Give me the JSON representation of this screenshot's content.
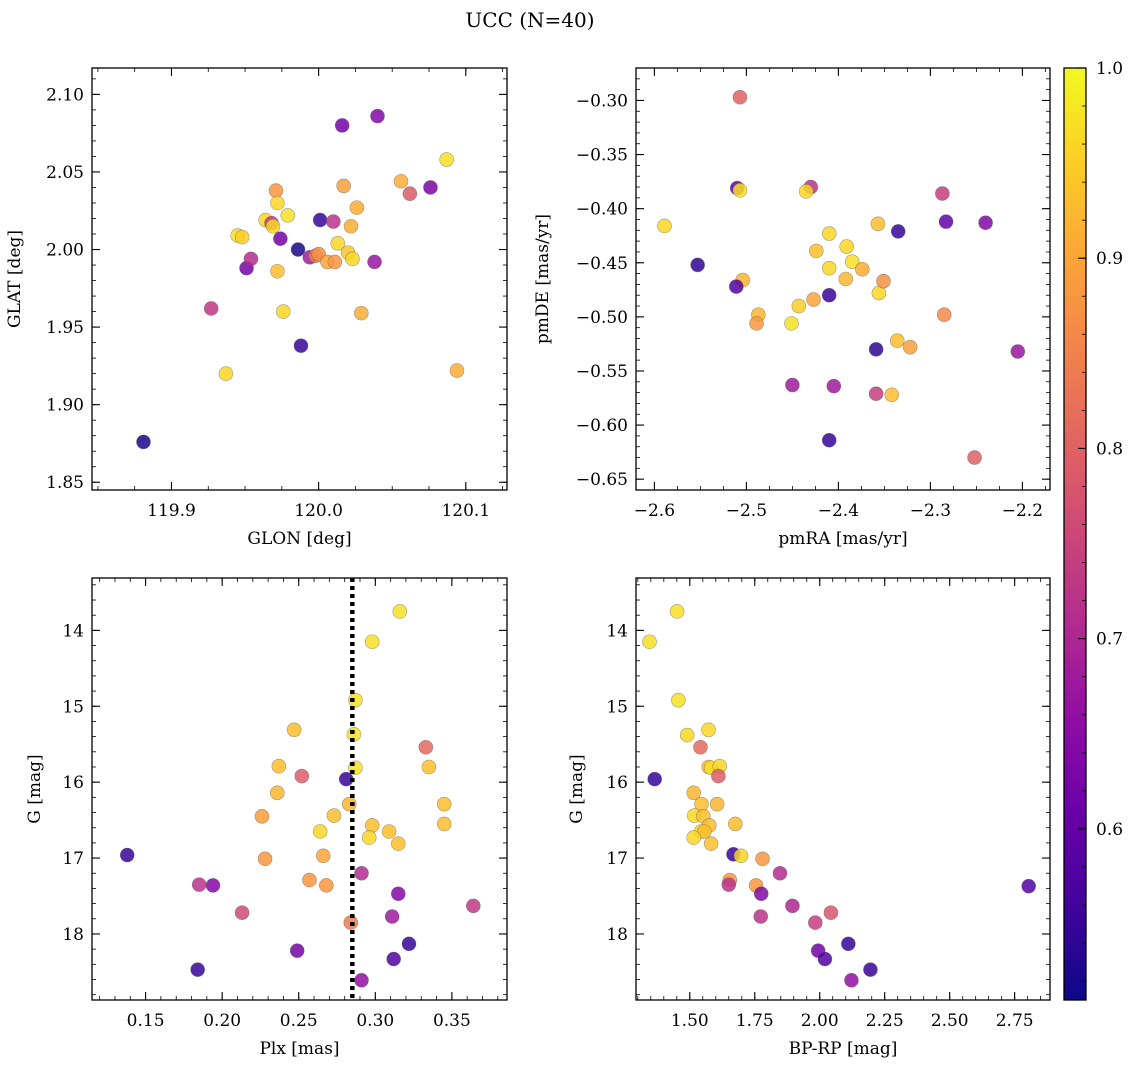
{
  "title": "UCC (N=40)",
  "colorbar": {
    "colormap": "plasma",
    "range": [
      0.51,
      1.0
    ],
    "ticks": [
      0.6,
      0.7,
      0.8,
      0.9,
      1.0
    ],
    "tick_labels": [
      "0.6",
      "0.7",
      "0.8",
      "0.9",
      "1.0"
    ]
  },
  "chart_data": [
    {
      "type": "scatter",
      "xlabel": "GLON [deg]",
      "ylabel": "GLAT [deg]",
      "xlim": [
        119.846,
        120.128
      ],
      "ylim": [
        1.845,
        2.117
      ],
      "xticks": [
        119.9,
        120.0,
        120.1
      ],
      "xtick_labels": [
        "119.9",
        "120.0",
        "120.1"
      ],
      "yticks": [
        1.85,
        1.9,
        1.95,
        2.0,
        2.05,
        2.1
      ],
      "ytick_labels": [
        "1.85",
        "1.90",
        "1.95",
        "2.00",
        "2.05",
        "2.10"
      ],
      "points": [
        [
          119.881,
          1.876,
          0.52
        ],
        [
          119.927,
          1.962,
          0.73
        ],
        [
          119.937,
          1.92,
          0.96
        ],
        [
          119.945,
          2.009,
          0.97
        ],
        [
          119.948,
          2.008,
          0.95
        ],
        [
          119.951,
          1.988,
          0.62
        ],
        [
          119.954,
          1.994,
          0.71
        ],
        [
          119.964,
          2.019,
          0.96
        ],
        [
          119.968,
          2.017,
          0.73
        ],
        [
          119.969,
          2.015,
          0.96
        ],
        [
          119.971,
          2.038,
          0.88
        ],
        [
          119.972,
          2.03,
          0.96
        ],
        [
          119.972,
          1.986,
          0.93
        ],
        [
          119.974,
          2.007,
          0.62
        ],
        [
          119.976,
          1.96,
          0.96
        ],
        [
          119.979,
          2.022,
          0.97
        ],
        [
          119.986,
          2.0,
          0.52
        ],
        [
          119.988,
          1.938,
          0.55
        ],
        [
          119.994,
          1.995,
          0.68
        ],
        [
          119.998,
          1.996,
          0.84
        ],
        [
          120.0,
          1.997,
          0.87
        ],
        [
          120.001,
          2.019,
          0.55
        ],
        [
          120.006,
          1.992,
          0.9
        ],
        [
          120.01,
          2.018,
          0.72
        ],
        [
          120.011,
          1.992,
          0.88
        ],
        [
          120.013,
          2.004,
          0.96
        ],
        [
          120.016,
          2.08,
          0.62
        ],
        [
          120.017,
          2.041,
          0.89
        ],
        [
          120.02,
          1.998,
          0.94
        ],
        [
          120.022,
          2.015,
          0.91
        ],
        [
          120.023,
          1.994,
          0.96
        ],
        [
          120.026,
          2.027,
          0.91
        ],
        [
          120.029,
          1.959,
          0.91
        ],
        [
          120.038,
          1.992,
          0.67
        ],
        [
          120.04,
          2.086,
          0.64
        ],
        [
          120.056,
          2.044,
          0.91
        ],
        [
          120.062,
          2.036,
          0.79
        ],
        [
          120.076,
          2.04,
          0.63
        ],
        [
          120.087,
          2.058,
          0.97
        ],
        [
          120.094,
          1.922,
          0.91
        ]
      ]
    },
    {
      "type": "scatter",
      "xlabel": "pmRA [mas/yr]",
      "ylabel": "pmDE [mas/yr]",
      "xlim": [
        -2.62,
        -2.17
      ],
      "ylim": [
        -0.66,
        -0.27
      ],
      "xticks": [
        -2.6,
        -2.5,
        -2.4,
        -2.3,
        -2.2
      ],
      "xtick_labels": [
        "−2.6",
        "−2.5",
        "−2.4",
        "−2.3",
        "−2.2"
      ],
      "yticks": [
        -0.65,
        -0.6,
        -0.55,
        -0.5,
        -0.45,
        -0.4,
        -0.35,
        -0.3
      ],
      "ytick_labels": [
        "−0.65",
        "−0.60",
        "−0.55",
        "−0.50",
        "−0.45",
        "−0.40",
        "−0.35",
        "−0.30"
      ],
      "points": [
        [
          -2.507,
          -0.297,
          0.8
        ],
        [
          -2.589,
          -0.416,
          0.96
        ],
        [
          -2.553,
          -0.452,
          0.54
        ],
        [
          -2.51,
          -0.381,
          0.6
        ],
        [
          -2.507,
          -0.383,
          0.97
        ],
        [
          -2.504,
          -0.466,
          0.92
        ],
        [
          -2.511,
          -0.472,
          0.58
        ],
        [
          -2.487,
          -0.498,
          0.92
        ],
        [
          -2.489,
          -0.506,
          0.88
        ],
        [
          -2.451,
          -0.506,
          0.97
        ],
        [
          -2.443,
          -0.49,
          0.95
        ],
        [
          -2.45,
          -0.563,
          0.68
        ],
        [
          -2.43,
          -0.38,
          0.72
        ],
        [
          -2.435,
          -0.384,
          0.96
        ],
        [
          -2.427,
          -0.484,
          0.9
        ],
        [
          -2.424,
          -0.439,
          0.93
        ],
        [
          -2.41,
          -0.423,
          0.96
        ],
        [
          -2.41,
          -0.455,
          0.96
        ],
        [
          -2.41,
          -0.48,
          0.55
        ],
        [
          -2.405,
          -0.564,
          0.68
        ],
        [
          -2.41,
          -0.614,
          0.55
        ],
        [
          -2.391,
          -0.435,
          0.96
        ],
        [
          -2.385,
          -0.449,
          0.97
        ],
        [
          -2.392,
          -0.465,
          0.92
        ],
        [
          -2.374,
          -0.456,
          0.91
        ],
        [
          -2.359,
          -0.53,
          0.54
        ],
        [
          -2.357,
          -0.414,
          0.93
        ],
        [
          -2.356,
          -0.478,
          0.96
        ],
        [
          -2.359,
          -0.571,
          0.74
        ],
        [
          -2.351,
          -0.467,
          0.87
        ],
        [
          -2.342,
          -0.572,
          0.93
        ],
        [
          -2.336,
          -0.522,
          0.93
        ],
        [
          -2.335,
          -0.421,
          0.55
        ],
        [
          -2.322,
          -0.528,
          0.89
        ],
        [
          -2.287,
          -0.386,
          0.74
        ],
        [
          -2.285,
          -0.498,
          0.86
        ],
        [
          -2.283,
          -0.412,
          0.6
        ],
        [
          -2.252,
          -0.63,
          0.8
        ],
        [
          -2.24,
          -0.413,
          0.64
        ],
        [
          -2.205,
          -0.532,
          0.67
        ]
      ]
    },
    {
      "type": "scatter",
      "xlabel": "Plx [mas]",
      "ylabel": "G [mag]",
      "xlim": [
        0.115,
        0.386
      ],
      "ylim": [
        18.87,
        13.31
      ],
      "y_inverted": true,
      "vline": 0.285,
      "xticks": [
        0.15,
        0.2,
        0.25,
        0.3,
        0.35
      ],
      "xtick_labels": [
        "0.15",
        "0.20",
        "0.25",
        "0.30",
        "0.35"
      ],
      "yticks": [
        14,
        15,
        16,
        17,
        18
      ],
      "ytick_labels": [
        "14",
        "15",
        "16",
        "17",
        "18"
      ],
      "points": [
        [
          0.316,
          13.75,
          0.97
        ],
        [
          0.298,
          14.15,
          0.97
        ],
        [
          0.287,
          14.92,
          0.97
        ],
        [
          0.247,
          15.31,
          0.93
        ],
        [
          0.286,
          15.37,
          0.97
        ],
        [
          0.333,
          15.54,
          0.81
        ],
        [
          0.237,
          15.79,
          0.93
        ],
        [
          0.335,
          15.8,
          0.93
        ],
        [
          0.287,
          15.81,
          0.97
        ],
        [
          0.252,
          15.92,
          0.79
        ],
        [
          0.281,
          15.96,
          0.55
        ],
        [
          0.236,
          16.14,
          0.92
        ],
        [
          0.283,
          16.29,
          0.92
        ],
        [
          0.345,
          16.29,
          0.93
        ],
        [
          0.226,
          16.45,
          0.89
        ],
        [
          0.273,
          16.44,
          0.93
        ],
        [
          0.298,
          16.57,
          0.93
        ],
        [
          0.345,
          16.55,
          0.93
        ],
        [
          0.264,
          16.65,
          0.96
        ],
        [
          0.309,
          16.65,
          0.93
        ],
        [
          0.296,
          16.73,
          0.96
        ],
        [
          0.315,
          16.81,
          0.93
        ],
        [
          0.138,
          16.96,
          0.55
        ],
        [
          0.266,
          16.97,
          0.9
        ],
        [
          0.228,
          17.01,
          0.88
        ],
        [
          0.291,
          17.2,
          0.71
        ],
        [
          0.257,
          17.29,
          0.88
        ],
        [
          0.185,
          17.35,
          0.72
        ],
        [
          0.194,
          17.36,
          0.64
        ],
        [
          0.268,
          17.36,
          0.88
        ],
        [
          0.315,
          17.47,
          0.64
        ],
        [
          0.364,
          17.63,
          0.73
        ],
        [
          0.213,
          17.72,
          0.76
        ],
        [
          0.311,
          17.77,
          0.68
        ],
        [
          0.284,
          17.85,
          0.84
        ],
        [
          0.322,
          18.13,
          0.55
        ],
        [
          0.249,
          18.22,
          0.62
        ],
        [
          0.312,
          18.33,
          0.58
        ],
        [
          0.184,
          18.47,
          0.55
        ],
        [
          0.291,
          18.61,
          0.66
        ]
      ]
    },
    {
      "type": "scatter",
      "xlabel": "BP-RP [mag]",
      "ylabel": "G [mag]",
      "xlim": [
        1.293,
        2.886
      ],
      "ylim": [
        18.87,
        13.31
      ],
      "y_inverted": true,
      "xticks": [
        1.5,
        1.75,
        2.0,
        2.25,
        2.5,
        2.75
      ],
      "xtick_labels": [
        "1.50",
        "1.75",
        "2.00",
        "2.25",
        "2.50",
        "2.75"
      ],
      "yticks": [
        14,
        15,
        16,
        17,
        18
      ],
      "ytick_labels": [
        "14",
        "15",
        "16",
        "17",
        "18"
      ],
      "points": [
        [
          1.451,
          13.75,
          0.97
        ],
        [
          1.345,
          14.15,
          0.97
        ],
        [
          1.456,
          14.92,
          0.97
        ],
        [
          1.49,
          15.38,
          0.96
        ],
        [
          1.572,
          15.31,
          0.96
        ],
        [
          1.541,
          15.54,
          0.81
        ],
        [
          1.573,
          15.8,
          0.93
        ],
        [
          1.582,
          15.81,
          0.97
        ],
        [
          1.615,
          15.79,
          0.96
        ],
        [
          1.365,
          15.96,
          0.55
        ],
        [
          1.61,
          15.92,
          0.79
        ],
        [
          1.515,
          16.14,
          0.92
        ],
        [
          1.545,
          16.29,
          0.93
        ],
        [
          1.605,
          16.29,
          0.92
        ],
        [
          1.517,
          16.44,
          0.96
        ],
        [
          1.552,
          16.45,
          0.93
        ],
        [
          1.575,
          16.57,
          0.93
        ],
        [
          1.675,
          16.55,
          0.93
        ],
        [
          1.543,
          16.65,
          0.96
        ],
        [
          1.556,
          16.65,
          0.93
        ],
        [
          1.515,
          16.73,
          0.96
        ],
        [
          1.582,
          16.81,
          0.93
        ],
        [
          1.668,
          16.95,
          0.55
        ],
        [
          1.697,
          16.97,
          0.96
        ],
        [
          1.78,
          17.01,
          0.88
        ],
        [
          1.847,
          17.2,
          0.71
        ],
        [
          1.654,
          17.29,
          0.88
        ],
        [
          1.65,
          17.35,
          0.72
        ],
        [
          1.755,
          17.36,
          0.88
        ],
        [
          2.804,
          17.37,
          0.58
        ],
        [
          1.775,
          17.47,
          0.64
        ],
        [
          1.895,
          17.63,
          0.7
        ],
        [
          2.043,
          17.72,
          0.78
        ],
        [
          1.773,
          17.77,
          0.72
        ],
        [
          1.983,
          17.85,
          0.74
        ],
        [
          2.11,
          18.13,
          0.55
        ],
        [
          1.994,
          18.22,
          0.62
        ],
        [
          2.02,
          18.33,
          0.58
        ],
        [
          2.195,
          18.47,
          0.55
        ],
        [
          2.122,
          18.61,
          0.66
        ]
      ]
    }
  ]
}
